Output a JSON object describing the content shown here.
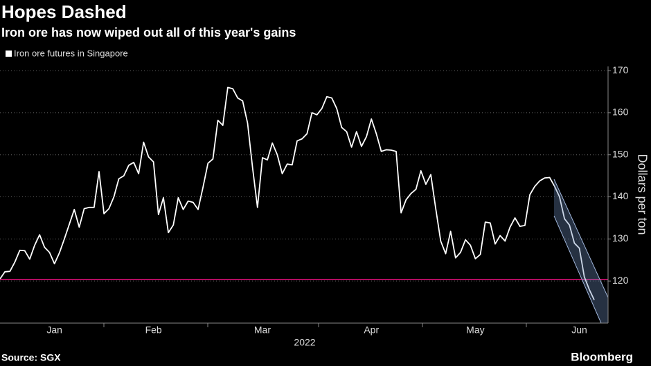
{
  "chart_data": {
    "type": "line",
    "title": "Hopes Dashed",
    "subtitle": "Iron ore has now wiped out all of this year's gains",
    "y_label": "Dollars per ton",
    "x_label": "2022",
    "source": "Source: SGX",
    "brand": "Bloomberg",
    "categories": [
      null,
      null,
      null,
      null,
      null,
      null,
      null,
      null,
      null,
      null,
      null,
      "Jan",
      null,
      null,
      null,
      null,
      null,
      null,
      null,
      null,
      null,
      null,
      null,
      null,
      null,
      null,
      null,
      null,
      null,
      null,
      null,
      "Feb",
      null,
      null,
      null,
      null,
      null,
      null,
      null,
      null,
      null,
      null,
      null,
      null,
      null,
      null,
      null,
      null,
      null,
      null,
      null,
      null,
      null,
      "Mar",
      null,
      null,
      null,
      null,
      null,
      null,
      null,
      null,
      null,
      null,
      null,
      null,
      null,
      null,
      null,
      null,
      null,
      null,
      null,
      null,
      null,
      "Apr",
      null,
      null,
      null,
      null,
      null,
      null,
      null,
      null,
      null,
      null,
      null,
      null,
      null,
      null,
      null,
      null,
      null,
      null,
      null,
      null,
      "May",
      null,
      null,
      null,
      null,
      null,
      null,
      null,
      null,
      null,
      null,
      null,
      null,
      null,
      null,
      null,
      null,
      null,
      null,
      null,
      null,
      "Jun",
      null,
      null,
      null
    ],
    "series": [
      {
        "name": "Iron ore futures in Singapore",
        "color": "#ffffff",
        "values": [
          120.5,
          122.2,
          122.3,
          124.5,
          127.3,
          127.2,
          125.2,
          128.5,
          131.0,
          128.0,
          126.8,
          124.1,
          126.7,
          130.0,
          133.5,
          137.0,
          132.8,
          137.2,
          137.5,
          137.5,
          146.0,
          136.0,
          137.2,
          140.0,
          144.3,
          145.0,
          147.5,
          148.2,
          145.5,
          153.0,
          149.5,
          148.3,
          135.8,
          139.8,
          131.5,
          133.3,
          139.8,
          137.0,
          139.0,
          138.7,
          137.0,
          142.3,
          148.0,
          149.0,
          158.2,
          157.0,
          166.0,
          165.7,
          163.5,
          162.8,
          157.5,
          147.0,
          137.5,
          149.3,
          148.8,
          152.8,
          150.0,
          145.5,
          147.8,
          147.6,
          153.3,
          153.8,
          155.0,
          160.0,
          159.5,
          161.0,
          163.8,
          163.5,
          161.0,
          156.5,
          155.5,
          151.8,
          155.5,
          152.0,
          154.3,
          158.5,
          155.0,
          150.8,
          151.2,
          151.1,
          150.8,
          136.2,
          139.3,
          140.8,
          141.8,
          146.2,
          143.0,
          145.3,
          137.2,
          129.5,
          126.5,
          131.8,
          125.5,
          126.8,
          129.8,
          128.5,
          125.3,
          126.3,
          134.0,
          133.8,
          128.8,
          130.8,
          129.5,
          132.8,
          135.0,
          133.0,
          133.2,
          140.5,
          142.5,
          143.8,
          144.5,
          144.6,
          142.5,
          140.0,
          134.8,
          133.3,
          129.0,
          127.8,
          121.0,
          118.0,
          115.5
        ]
      }
    ],
    "reference_line": {
      "value": 120.4,
      "color": "#e8117f"
    },
    "ylim": [
      110,
      171
    ],
    "yticks": [
      120,
      130,
      140,
      150,
      160,
      170
    ],
    "grid": true
  }
}
